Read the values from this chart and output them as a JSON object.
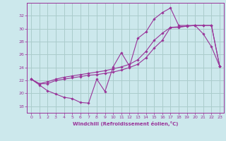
{
  "xlabel": "Windchill (Refroidissement éolien,°C)",
  "background_color": "#cce8ec",
  "grid_color": "#aacccc",
  "line_color": "#993399",
  "x_ticks": [
    0,
    1,
    2,
    3,
    4,
    5,
    6,
    7,
    8,
    9,
    10,
    11,
    12,
    13,
    14,
    15,
    16,
    17,
    18,
    19,
    20,
    21,
    22,
    23
  ],
  "y_ticks": [
    18,
    20,
    22,
    24,
    26,
    28,
    30,
    32
  ],
  "ylim": [
    17.0,
    34.0
  ],
  "xlim": [
    -0.5,
    23.5
  ],
  "series1_x": [
    0,
    1,
    2,
    3,
    4,
    5,
    6,
    7,
    8,
    9,
    10,
    11,
    12,
    13,
    14,
    15,
    16,
    17,
    18,
    19,
    20,
    21,
    22,
    23
  ],
  "series1_y": [
    22.2,
    21.3,
    20.4,
    19.9,
    19.4,
    19.2,
    18.6,
    18.5,
    22.2,
    20.3,
    24.1,
    26.3,
    24.2,
    28.5,
    29.5,
    31.5,
    32.5,
    33.2,
    30.5,
    30.5,
    30.5,
    29.2,
    27.2,
    24.2
  ],
  "series2_x": [
    0,
    1,
    2,
    3,
    4,
    5,
    6,
    7,
    8,
    9,
    10,
    11,
    12,
    13,
    14,
    15,
    16,
    17,
    18,
    19,
    20,
    21,
    22,
    23
  ],
  "series2_y": [
    22.2,
    21.5,
    21.5,
    22.0,
    22.2,
    22.4,
    22.6,
    22.8,
    22.9,
    23.1,
    23.3,
    23.6,
    24.0,
    24.5,
    25.5,
    27.0,
    28.2,
    30.2,
    30.3,
    30.4,
    30.5,
    30.5,
    30.5,
    24.2
  ],
  "series3_x": [
    0,
    1,
    2,
    3,
    4,
    5,
    6,
    7,
    8,
    9,
    10,
    11,
    12,
    13,
    14,
    15,
    16,
    17,
    18,
    19,
    20,
    21,
    22,
    23
  ],
  "series3_y": [
    22.2,
    21.5,
    21.8,
    22.2,
    22.5,
    22.7,
    22.9,
    23.1,
    23.3,
    23.5,
    23.8,
    24.1,
    24.5,
    25.2,
    26.5,
    28.2,
    29.3,
    30.2,
    30.2,
    30.4,
    30.5,
    30.5,
    30.5,
    24.2
  ]
}
